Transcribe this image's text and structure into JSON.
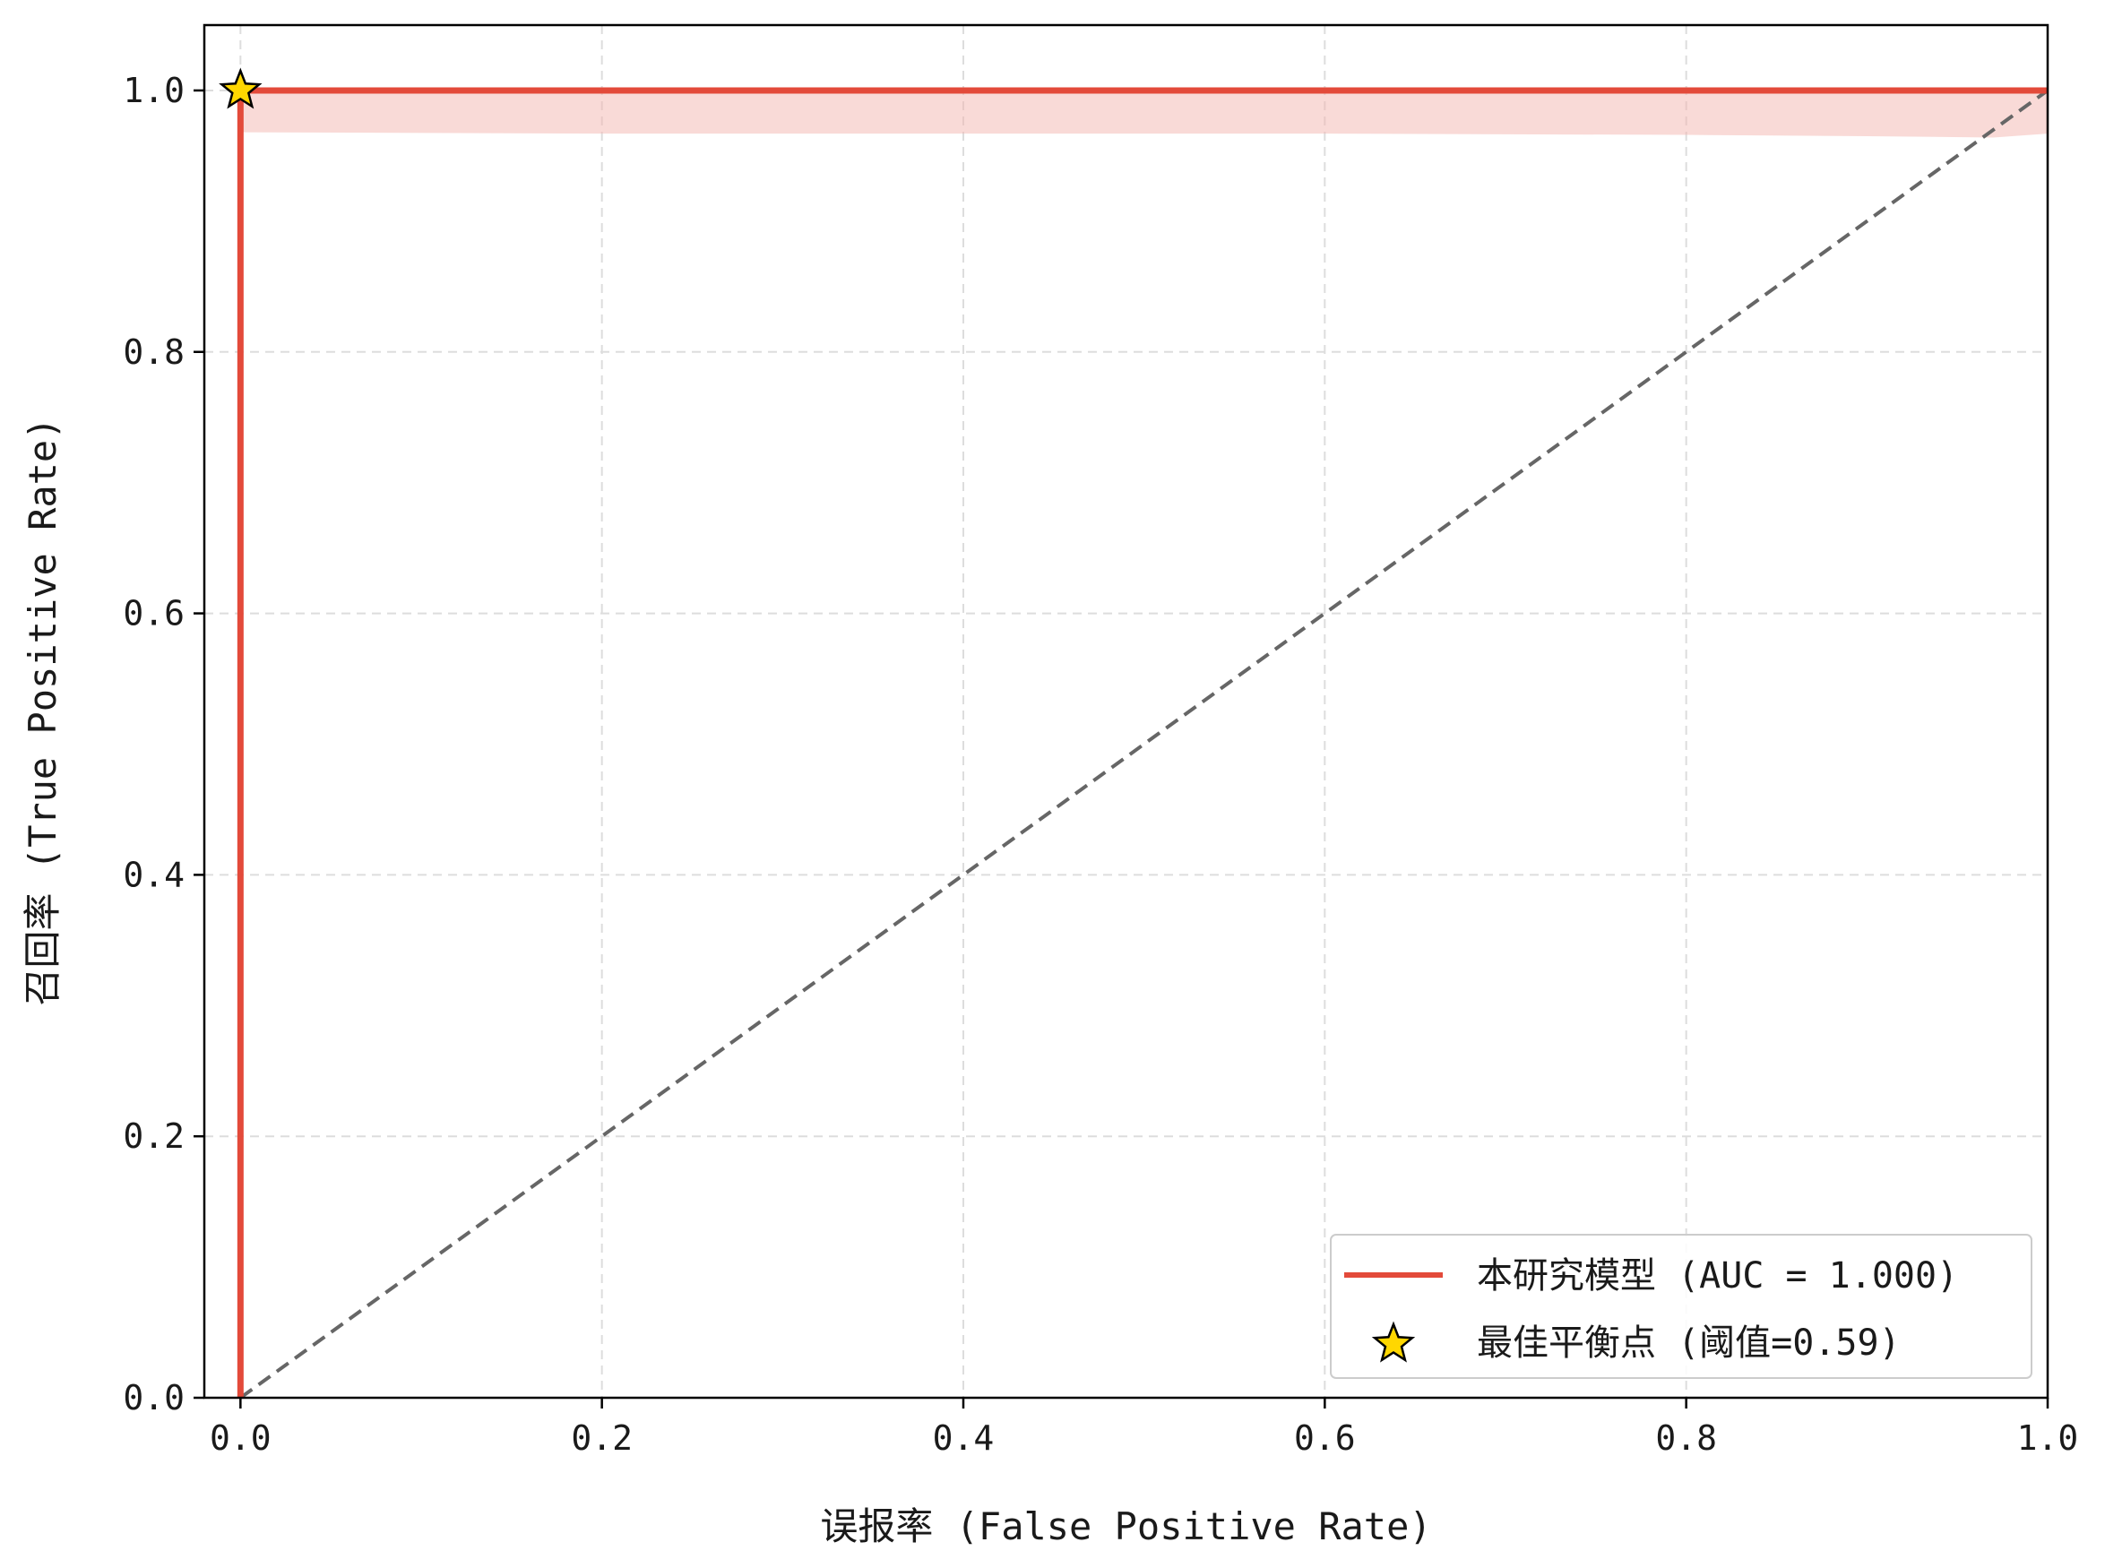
{
  "chart_data": {
    "type": "line",
    "title": "",
    "xlabel": "误报率 (False Positive Rate)",
    "ylabel": "召回率 (True Positive Rate)",
    "xlim": [
      -0.02,
      1.0
    ],
    "ylim": [
      0.0,
      1.05
    ],
    "x_ticks": [
      0.0,
      0.2,
      0.4,
      0.6,
      0.8,
      1.0
    ],
    "x_tick_labels": [
      "0.0",
      "0.2",
      "0.4",
      "0.6",
      "0.8",
      "1.0"
    ],
    "y_ticks": [
      0.0,
      0.2,
      0.4,
      0.6,
      0.8,
      1.0
    ],
    "y_tick_labels": [
      "0.0",
      "0.2",
      "0.4",
      "0.6",
      "0.8",
      "1.0"
    ],
    "grid": true,
    "legend_position": "lower-right",
    "series": [
      {
        "name": "本研究模型 (AUC = 1.000)",
        "kind": "line",
        "color": "#e34a3a",
        "x": [
          0.0,
          0.0,
          1.0
        ],
        "y": [
          0.0,
          1.0,
          1.0
        ]
      },
      {
        "name": "最佳平衡点 (阈值=0.59)",
        "kind": "marker",
        "marker": "star",
        "color": "#ffd700",
        "edge_color": "#000000",
        "x": [
          0.0
        ],
        "y": [
          1.0
        ]
      }
    ],
    "confidence_band": {
      "color": "#f4b6b0",
      "x": [
        0.0,
        0.2,
        0.4,
        0.6,
        0.8,
        0.9,
        0.97,
        1.0
      ],
      "lower": [
        0.968,
        0.967,
        0.967,
        0.967,
        0.966,
        0.965,
        0.964,
        0.967
      ],
      "upper": [
        1.0,
        1.0,
        1.0,
        1.0,
        1.0,
        1.0,
        1.0,
        1.0
      ]
    },
    "reference_line": {
      "style": "dashed",
      "color": "#666666",
      "x": [
        0.0,
        1.0
      ],
      "y": [
        0.0,
        1.0
      ]
    }
  }
}
